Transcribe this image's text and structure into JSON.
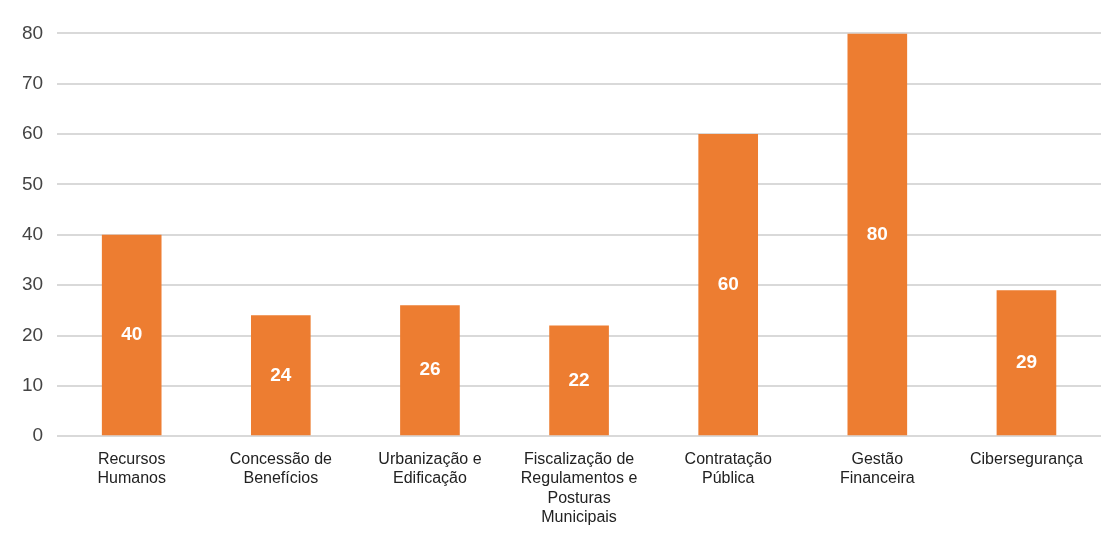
{
  "chart_data": {
    "type": "bar",
    "categories": [
      "Recursos Humanos",
      "Concessão de Benefícios",
      "Urbanização e Edificação",
      "Fiscalização de Regulamentos e Posturas Municipais",
      "Contratação Pública",
      "Gestão Financeira",
      "Cibersegurança"
    ],
    "values": [
      40,
      24,
      26,
      22,
      60,
      80,
      29
    ],
    "color": "#ed7d31",
    "ylim": [
      0,
      80
    ],
    "yticks": [
      0,
      10,
      20,
      30,
      40,
      50,
      60,
      70,
      80
    ],
    "grid": "y",
    "data_labels": true
  }
}
